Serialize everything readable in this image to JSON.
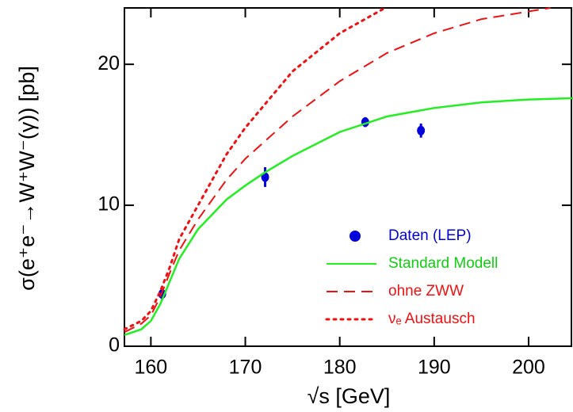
{
  "chart_data": {
    "type": "line",
    "x_label": "√s   [GeV]",
    "y_label": "σ(e⁺e⁻→W⁺W⁻(γ))   [pb]",
    "xlim": [
      157.2,
      204.7
    ],
    "ylim": [
      0,
      24
    ],
    "xticks": [
      160,
      170,
      180,
      190,
      200
    ],
    "yticks": [
      0,
      10,
      20
    ],
    "series": [
      {
        "name": "Daten (LEP)",
        "color": "#0000dd",
        "style": "points",
        "x": [
          161.2,
          172.1,
          182.7,
          188.6
        ],
        "values": [
          3.7,
          12.0,
          15.9,
          15.3
        ],
        "errors": [
          0.4,
          0.7,
          0.35,
          0.5
        ]
      },
      {
        "name": "Standard Modell",
        "color": "#22ee22",
        "style": "solid",
        "x": [
          157.2,
          159,
          160,
          161,
          162,
          163,
          165,
          168,
          170,
          172,
          175,
          180,
          185,
          190,
          195,
          200,
          204.7
        ],
        "values": [
          0.8,
          1.2,
          1.8,
          3.0,
          4.6,
          6.2,
          8.3,
          10.4,
          11.4,
          12.3,
          13.5,
          15.2,
          16.3,
          16.9,
          17.3,
          17.5,
          17.6
        ]
      },
      {
        "name": "ohne ZWW",
        "color": "#ee1111",
        "style": "dashed",
        "x": [
          157.2,
          159,
          160,
          161,
          162,
          163,
          165,
          168,
          170,
          175,
          180,
          185,
          190,
          195,
          202.3
        ],
        "values": [
          1.0,
          1.6,
          2.2,
          3.5,
          5.2,
          6.8,
          9.0,
          11.8,
          13.3,
          16.3,
          18.8,
          20.8,
          22.2,
          23.2,
          24
        ]
      },
      {
        "name": "νₑ Austausch",
        "color": "#ee1111",
        "style": "dotted",
        "x": [
          157.2,
          159,
          160,
          161,
          162,
          163,
          165,
          168,
          170,
          175,
          180,
          184.8
        ],
        "values": [
          1.2,
          1.8,
          2.5,
          3.9,
          5.6,
          7.6,
          10.0,
          13.6,
          15.5,
          19.5,
          22.2,
          24
        ]
      }
    ]
  }
}
